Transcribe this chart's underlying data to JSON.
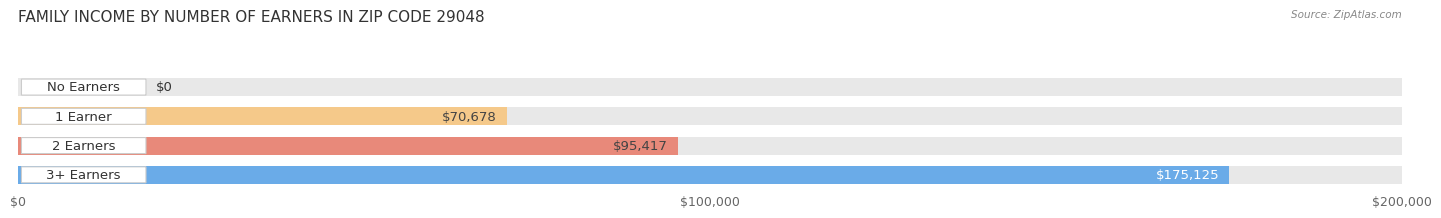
{
  "title": "FAMILY INCOME BY NUMBER OF EARNERS IN ZIP CODE 29048",
  "source": "Source: ZipAtlas.com",
  "categories": [
    "No Earners",
    "1 Earner",
    "2 Earners",
    "3+ Earners"
  ],
  "values": [
    0,
    70678,
    95417,
    175125
  ],
  "bar_colors": [
    "#f4a0bb",
    "#f5c98a",
    "#e8897a",
    "#6aabe8"
  ],
  "bar_bg_color": "#e8e8e8",
  "label_colors": [
    "#444444",
    "#444444",
    "#444444",
    "#ffffff"
  ],
  "value_labels": [
    "$0",
    "$70,678",
    "$95,417",
    "$175,125"
  ],
  "xlim": [
    0,
    200000
  ],
  "xticks": [
    0,
    100000,
    200000
  ],
  "xtick_labels": [
    "$0",
    "$100,000",
    "$200,000"
  ],
  "background_color": "#ffffff",
  "bar_height": 0.62,
  "title_fontsize": 11,
  "label_fontsize": 9.5,
  "tick_fontsize": 9
}
